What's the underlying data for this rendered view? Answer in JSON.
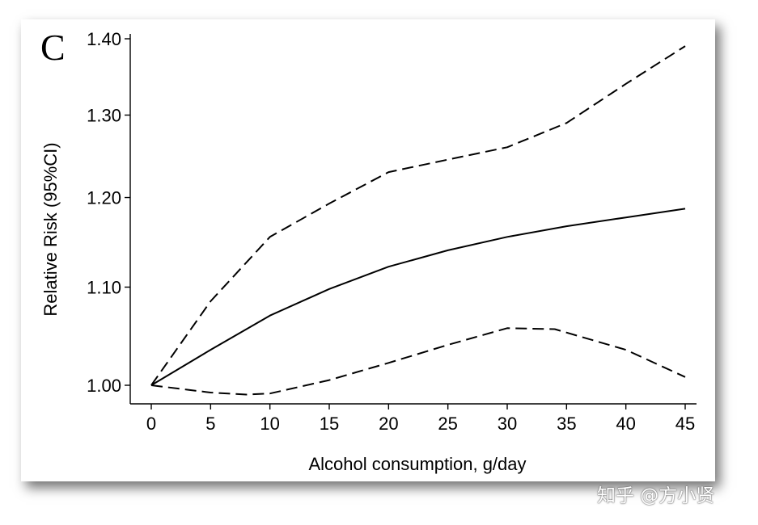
{
  "panel_label": "C",
  "watermark": "知乎 @方小贤",
  "chart_data": {
    "type": "line",
    "title": "",
    "xlabel": "Alcohol consumption, g/day",
    "ylabel": "Relative Risk (95%CI)",
    "xlim": [
      0,
      45
    ],
    "ylim": [
      0.98,
      1.4
    ],
    "scale_y": "log",
    "grid": false,
    "legend": "none",
    "x_ticks": [
      0,
      5,
      10,
      15,
      20,
      25,
      30,
      35,
      40,
      45
    ],
    "x_tick_labels": [
      "0",
      "5",
      "10",
      "15",
      "20",
      "25",
      "30",
      "35",
      "40",
      "45"
    ],
    "y_ticks": [
      1.0,
      1.1,
      1.2,
      1.3,
      1.4
    ],
    "y_tick_labels": [
      "1.00",
      "1.10",
      "1.20",
      "1.30",
      "1.40"
    ],
    "series": [
      {
        "style": "solid",
        "x": [
          0,
          5,
          10,
          15,
          20,
          25,
          30,
          35,
          40,
          45
        ],
        "y": [
          1.0,
          1.035,
          1.07,
          1.098,
          1.122,
          1.14,
          1.155,
          1.167,
          1.177,
          1.187
        ]
      },
      {
        "style": "dashed",
        "x": [
          0,
          5,
          10,
          12,
          15,
          20,
          25,
          30,
          35,
          40,
          45
        ],
        "y": [
          1.0,
          1.085,
          1.155,
          1.17,
          1.193,
          1.23,
          1.245,
          1.26,
          1.29,
          1.34,
          1.39
        ]
      },
      {
        "style": "dashed",
        "x": [
          0,
          5,
          8,
          10,
          15,
          20,
          25,
          30,
          34,
          40,
          45
        ],
        "y": [
          1.0,
          0.993,
          0.991,
          0.992,
          1.005,
          1.022,
          1.04,
          1.057,
          1.056,
          1.035,
          1.008
        ]
      }
    ]
  }
}
